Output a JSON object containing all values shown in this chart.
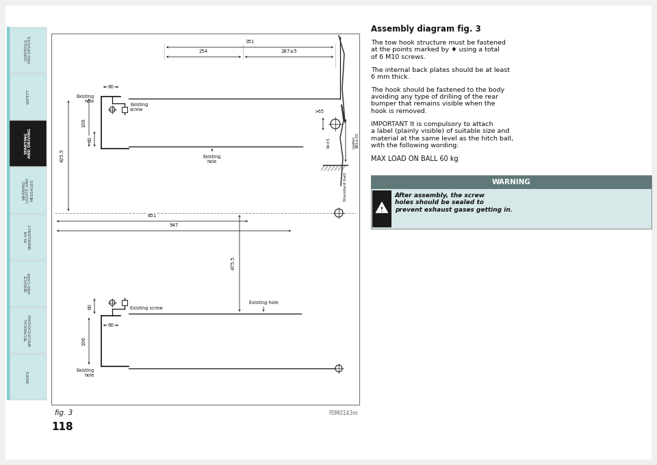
{
  "bg_color": "#f0f0f0",
  "page_bg": "#ffffff",
  "title": "Assembly diagram fig. 3",
  "para1": "The tow hook structure must be fastened\nat the points marked by ♦ using a total\nof 6 M10 screws.",
  "para2": "The internal back plates should be at least\n6 mm thick.",
  "para3": "The hook should be fastened to the body\navoiding any type of drilling of the rear\nbumper that remains visible when the\nhook is removed.",
  "para4": "IMPORTANT It is compulsory to attach\na label (plainly visible) of suitable size and\nmaterial at the same level as the hitch ball,\nwith the following wording:",
  "para5": "MAX LOAD ON BALL 60 kg",
  "warning_title": "WARNING",
  "warning_text": "After assembly, the screw\nholes should be sealed to\nprevent exhaust gases getting in.",
  "sidebar_tabs": [
    "CONTROLS\nAND DEVICES",
    "SAFETY",
    "STARTING\nAND DRIVING",
    "WARNING\nLIGHTS AND\nMESSAGES",
    "IN AN\nEMERGENCY",
    "SERVICE\nAND CARE",
    "TECHNICAL\nSPECIFICATIONS",
    "INDEX"
  ],
  "active_tab": 2,
  "page_number": "118",
  "fig_label": "fig. 3",
  "fig_code": "F0M0143m",
  "tab_cyan": "#7ecece",
  "tab_light": "#cce8e8",
  "tab_dark": "#1a1a1a",
  "warn_header_bg": "#607878",
  "warn_body_bg": "#d8e8e8",
  "warn_tri_bg": "#1a1a1a"
}
